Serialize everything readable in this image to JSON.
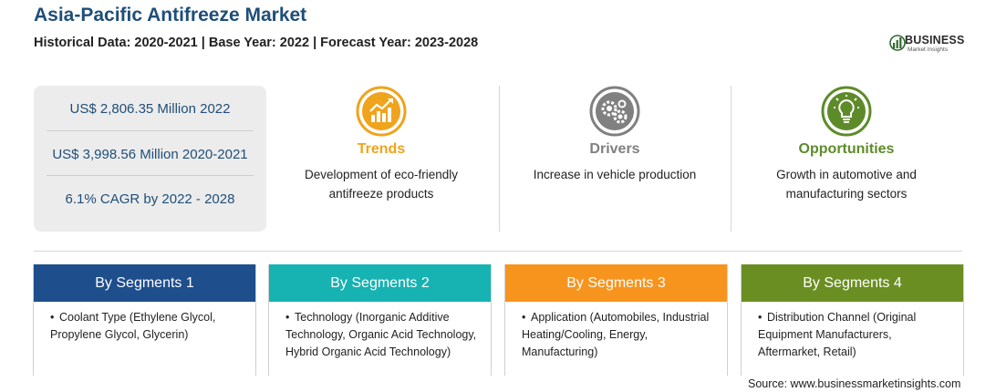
{
  "header": {
    "title": "Asia-Pacific Antifreeze Market",
    "subtitle": "Historical Data: 2020-2021 | Base Year: 2022 | Forecast Year: 2023-2028"
  },
  "logo": {
    "name": "BUSINESS",
    "tagline": "Market Insights"
  },
  "stats": [
    "US$ 2,806.35 Million 2022",
    "US$ 3,998.56 Million 2020-2021",
    "6.1% CAGR by 2022 - 2028"
  ],
  "columns": [
    {
      "title": "Trends",
      "text": "Development of eco-friendly antifreeze products",
      "color": "#f0a31c",
      "icon": "trend-chart-icon"
    },
    {
      "title": "Drivers",
      "text": "Increase in vehicle production",
      "color": "#808080",
      "icon": "gears-icon"
    },
    {
      "title": "Opportunities",
      "text": "Growth in automotive and manufacturing sectors",
      "color": "#5d8b2a",
      "icon": "lightbulb-icon"
    }
  ],
  "segments": [
    {
      "title": "By Segments 1",
      "color": "#1e4e8c",
      "items": [
        "Coolant Type (Ethylene Glycol, Propylene Glycol, Glycerin)"
      ]
    },
    {
      "title": "By Segments 2",
      "color": "#17b2b2",
      "items": [
        "Technology (Inorganic Additive Technology, Organic Acid Technology, Hybrid Organic Acid Technology)"
      ]
    },
    {
      "title": "By Segments 3",
      "color": "#f7941e",
      "items": [
        "Application (Automobiles, Industrial Heating/Cooling, Energy, Manufacturing)"
      ]
    },
    {
      "title": "By Segments 4",
      "color": "#6b8e23",
      "items": [
        "Distribution Channel (Original Equipment Manufacturers, Aftermarket, Retail)"
      ]
    }
  ],
  "source": "Source: www.businessmarketinsights.com"
}
